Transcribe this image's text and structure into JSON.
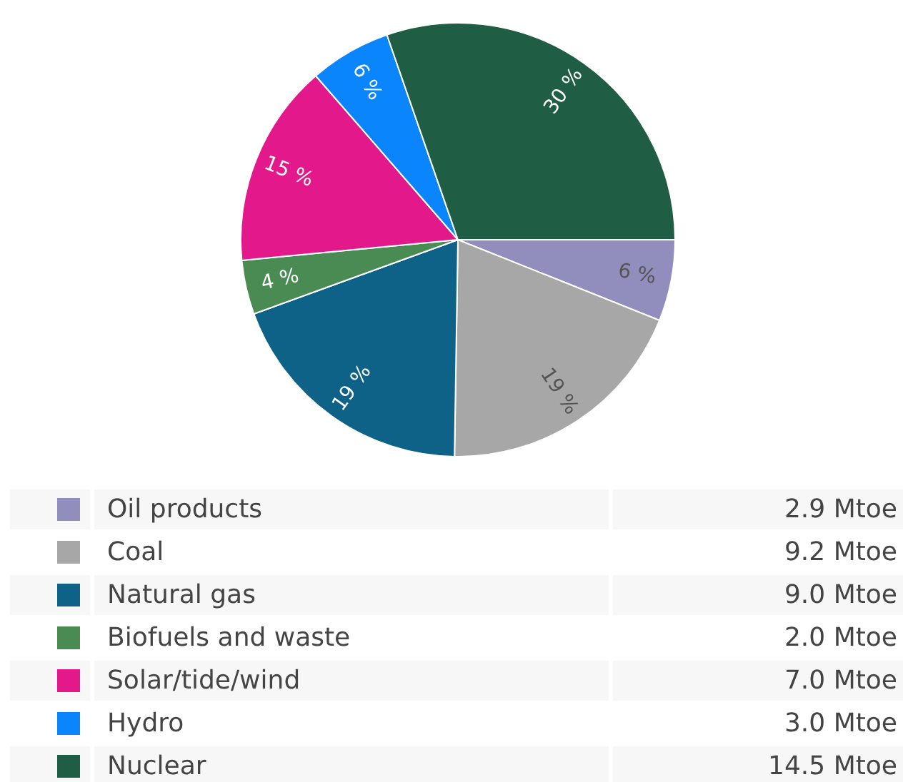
{
  "chart_data": {
    "type": "pie",
    "categories": [
      "Oil products",
      "Coal",
      "Natural gas",
      "Biofuels and waste",
      "Solar/tide/wind",
      "Hydro",
      "Nuclear"
    ],
    "values": [
      6,
      19,
      19,
      4,
      15,
      6,
      30
    ],
    "colors": [
      "#918ebe",
      "#a7a7a7",
      "#0e6288",
      "#4a8b53",
      "#e3198b",
      "#0a85fb",
      "#1f5e44"
    ],
    "value_labels": [
      "6 %",
      "19 %",
      "19 %",
      "4 %",
      "15 %",
      "6 %",
      "30 %"
    ],
    "annotations": [
      "2.9 Mtoe",
      "9.2 Mtoe",
      "9.0 Mtoe",
      "2.0 Mtoe",
      "7.0 Mtoe",
      "3.0 Mtoe",
      "14.5 Mtoe"
    ],
    "legend": "bottom"
  }
}
